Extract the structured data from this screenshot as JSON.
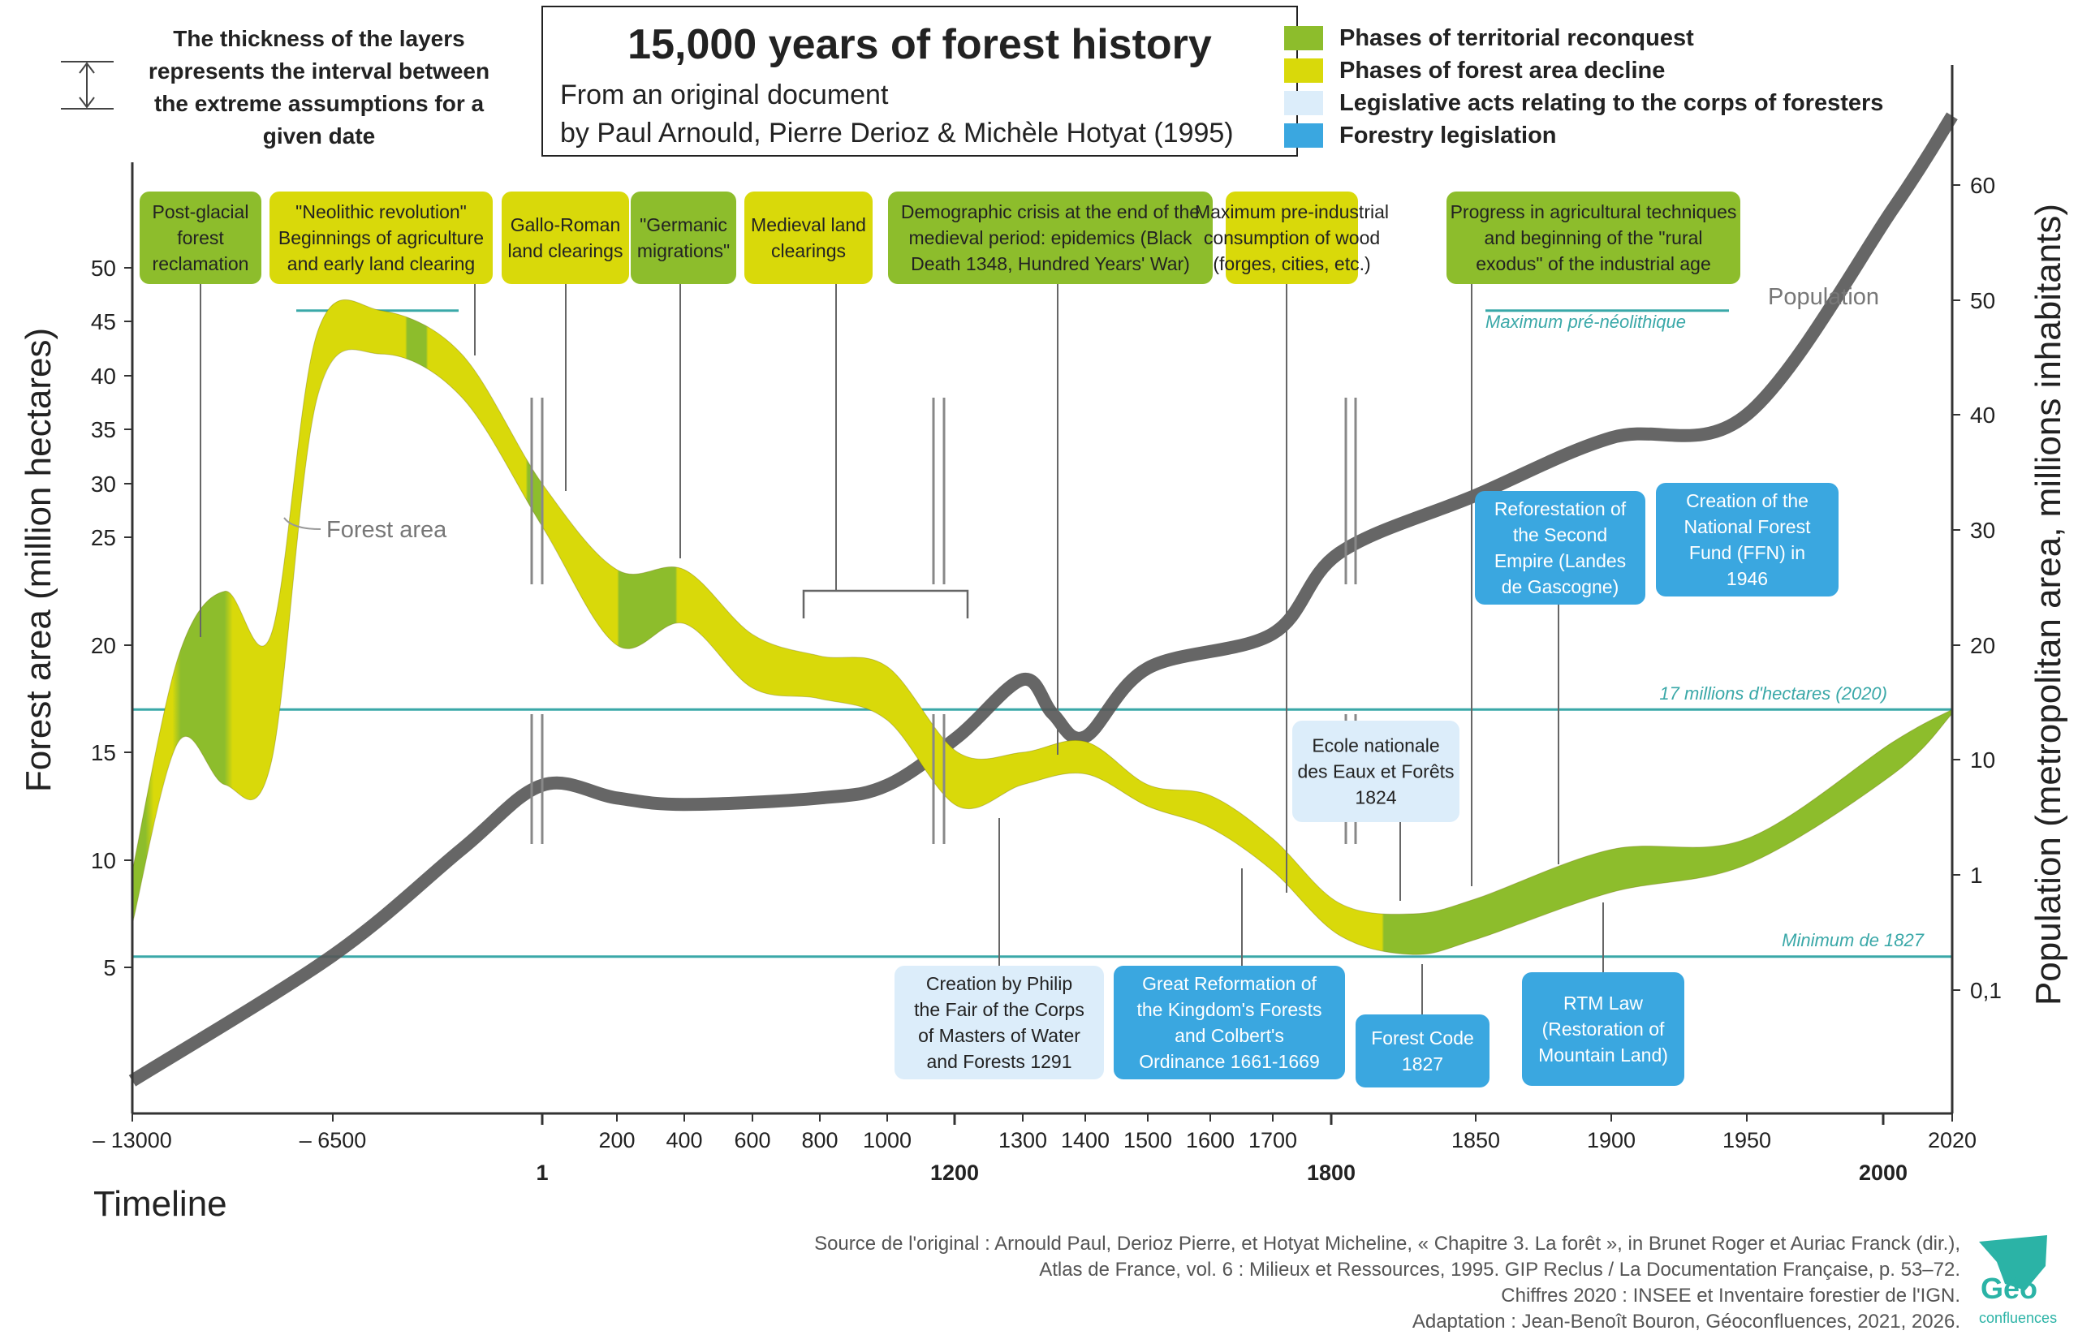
{
  "chart_data": {
    "type": "area",
    "title": "15,000 years of forest history",
    "subtitle_lines": [
      "From an original document",
      "by Paul Arnould, Pierre Derioz & Michèle Hotyat (1995)"
    ],
    "thickness_note_lines": [
      "The thickness of the layers",
      "represents the interval between",
      "the extreme assumptions for a",
      "given date"
    ],
    "xlabel": "Timeline",
    "ylabel_left": "Forest area (million hectares)",
    "ylabel_right": "Population (metropolitan area, millions inhabitants)",
    "y_left_ticks": [
      50,
      45,
      40,
      35,
      30,
      25,
      20,
      15,
      10,
      5
    ],
    "y_right_ticks": [
      "60",
      "50",
      "40",
      "30",
      "20",
      "10",
      "1",
      "0,1"
    ],
    "x_tick_labels": [
      "– 13000",
      "– 6500",
      "200",
      "400",
      "600",
      "800",
      "1000",
      "1300",
      "1400",
      "1500",
      "1600",
      "1700",
      "1850",
      "1900",
      "1950",
      "2020"
    ],
    "x_major_labels": [
      "1",
      "1200",
      "1800",
      "2000"
    ],
    "legend": [
      {
        "label": "Phases of territorial reconquest",
        "color": "#8dbd2c"
      },
      {
        "label": "Phases of forest area decline",
        "color": "#d9d90a"
      },
      {
        "label": "Legislative acts relating to the corps of foresters",
        "color": "#dcedfa"
      },
      {
        "label": "Forestry legislation",
        "color": "#3aa7e0"
      }
    ],
    "reference_lines": [
      {
        "label": "Maximum pré-néolithique",
        "value": 46
      },
      {
        "label": "17 millions d'hectares (2020)",
        "value": 17
      },
      {
        "label": "Minimum de 1827",
        "value": 5.5
      }
    ],
    "series": [
      {
        "name": "Forest area",
        "x": [
          "-13000",
          "-11500",
          "-10000",
          "-8500",
          "-7000",
          "-5000",
          "-2500",
          "1",
          "200",
          "400",
          "600",
          "800",
          "1000",
          "1200",
          "1300",
          "1400",
          "1500",
          "1600",
          "1700",
          "1800",
          "1827",
          "1850",
          "1900",
          "1950",
          "2000",
          "2020"
        ],
        "low": [
          7,
          15.5,
          13.5,
          14.5,
          38,
          42,
          38,
          26,
          20,
          21,
          18,
          17.5,
          16.5,
          12.5,
          13.5,
          14,
          12.5,
          11.5,
          9.5,
          6.5,
          5.6,
          6.3,
          8.5,
          9.8,
          14,
          16.8
        ],
        "high": [
          9.5,
          19.5,
          22.5,
          20.5,
          44,
          46,
          42,
          30,
          23.5,
          23.5,
          20.5,
          19.5,
          19,
          15,
          15,
          15.5,
          13.5,
          13,
          11,
          8,
          7.5,
          8.2,
          10.5,
          11,
          15.5,
          17
        ]
      },
      {
        "name": "Population",
        "unit": "millions inhabitants",
        "x": [
          "-13000",
          "-6500",
          "-2500",
          "1",
          "200",
          "400",
          "800",
          "1000",
          "1200",
          "1300",
          "1348",
          "1400",
          "1500",
          "1700",
          "1800",
          "1850",
          "1900",
          "1950",
          "2000",
          "2020"
        ],
        "values": [
          0.02,
          0.2,
          3,
          8,
          7,
          6.5,
          7,
          8,
          12,
          17,
          14,
          12,
          18,
          21,
          28,
          33,
          38,
          40,
          58,
          66
        ]
      }
    ],
    "annotations": {
      "forest_area_label": "Forest area",
      "population_label": "Population",
      "phases": [
        {
          "text": [
            "Post-glacial",
            "forest",
            "reclamation"
          ],
          "kind": "reconquest"
        },
        {
          "text": [
            "\"Neolithic revolution\"",
            "Beginnings of agriculture",
            "and early land clearing"
          ],
          "kind": "decline"
        },
        {
          "text": [
            "Gallo-Roman",
            "land clearings"
          ],
          "kind": "decline"
        },
        {
          "text": [
            "\"Germanic",
            "migrations\""
          ],
          "kind": "reconquest"
        },
        {
          "text": [
            "Medieval land",
            "clearings"
          ],
          "kind": "decline"
        },
        {
          "text": [
            "Demographic crisis at the end of the",
            "medieval period: epidemics (Black",
            "Death 1348, Hundred Years' War)"
          ],
          "kind": "reconquest"
        },
        {
          "text": [
            "Maximum pre-industrial",
            "consumption of wood",
            "(forges, cities, etc.)"
          ],
          "kind": "decline"
        },
        {
          "text": [
            "Progress in agricultural techniques",
            "and beginning of the \"rural",
            "exodus\" of the industrial age"
          ],
          "kind": "reconquest"
        }
      ],
      "legislation": [
        {
          "text": [
            "Creation by Philip",
            "the Fair of the Corps",
            "of Masters of Water",
            "and Forests 1291"
          ],
          "kind": "corps"
        },
        {
          "text": [
            "Great Reformation of",
            "the Kingdom's Forests",
            "and Colbert's",
            "Ordinance 1661-1669"
          ],
          "kind": "forestry"
        },
        {
          "text": [
            "Ecole nationale",
            "des Eaux et Forêts",
            "1824"
          ],
          "kind": "corps"
        },
        {
          "text": [
            "Forest Code",
            "1827"
          ],
          "kind": "forestry"
        },
        {
          "text": [
            "RTM Law",
            "(Restoration of",
            "Mountain Land)"
          ],
          "kind": "forestry"
        },
        {
          "text": [
            "Reforestation of",
            "the Second",
            "Empire (Landes",
            "de Gascogne)"
          ],
          "kind": "forestry"
        },
        {
          "text": [
            "Creation of the",
            "National Forest",
            "Fund (FFN) in",
            "1946"
          ],
          "kind": "forestry"
        }
      ]
    },
    "source_lines": [
      "Source de l'original : Arnould Paul, Derioz Pierre, et Hotyat Micheline, « Chapitre 3. La forêt », in Brunet Roger et Auriac Franck (dir.),",
      "Atlas de France, vol. 6 : Milieux et Ressources, 1995. GIP Reclus / La Documentation Française, p. 53–72.",
      "Chiffres 2020 : INSEE et Inventaire forestier de l'IGN.",
      "Adaptation : Jean-Benoît Bouron, Géoconfluences, 2021, 2026."
    ],
    "logo_text": [
      "Géo",
      "confluences"
    ]
  },
  "colors": {
    "reconquest": "#8dbd2c",
    "decline": "#d9d90a",
    "corps": "#dcedfa",
    "forestry": "#3aa7e0",
    "reference": "#3aa8a8",
    "population": "#555555",
    "axis": "#333333"
  }
}
